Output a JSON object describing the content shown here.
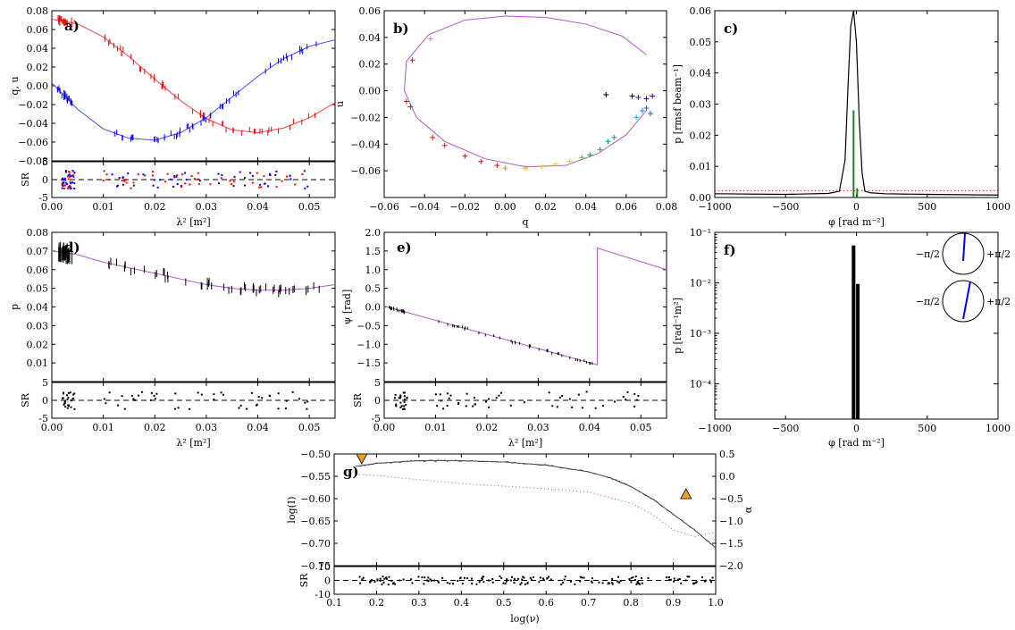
{
  "chart_data": [
    {
      "id": "a",
      "type": "line",
      "panel_label": "a)",
      "ylabel": "q, u",
      "xlim": [
        0,
        0.055
      ],
      "ylim": [
        -0.08,
        0.08
      ],
      "xticks": [
        0.0,
        0.01,
        0.02,
        0.03,
        0.04,
        0.05
      ],
      "xtick_labels": [
        "0.00",
        "0.01",
        "0.02",
        "0.03",
        "0.04",
        "0.05"
      ],
      "yticks": [
        -0.08,
        -0.06,
        -0.04,
        -0.02,
        0.0,
        0.02,
        0.04,
        0.06,
        0.08
      ],
      "ytick_labels": [
        "−0.08",
        "−0.06",
        "−0.04",
        "−0.02",
        "0.00",
        "0.02",
        "0.04",
        "0.06",
        "0.08"
      ],
      "series": [
        {
          "name": "q model",
          "color": "#ff4040",
          "x": [
            0,
            0.005,
            0.01,
            0.015,
            0.02,
            0.025,
            0.03,
            0.035,
            0.04,
            0.045,
            0.05,
            0.055
          ],
          "y": [
            0.071,
            0.066,
            0.052,
            0.031,
            0.007,
            -0.016,
            -0.035,
            -0.047,
            -0.05,
            -0.045,
            -0.034,
            -0.018
          ]
        },
        {
          "name": "u model",
          "color": "#4b4bff",
          "x": [
            0,
            0.005,
            0.01,
            0.015,
            0.02,
            0.025,
            0.03,
            0.035,
            0.04,
            0.045,
            0.05,
            0.055
          ],
          "y": [
            0.003,
            -0.025,
            -0.046,
            -0.056,
            -0.058,
            -0.05,
            -0.034,
            -0.012,
            0.01,
            0.029,
            0.042,
            0.049
          ]
        }
      ],
      "residual": {
        "ylabel": "SR",
        "ylim": [
          -5,
          5
        ],
        "yticks": [
          -5,
          0,
          5
        ],
        "xlabel": "λ² [m²]"
      }
    },
    {
      "id": "b",
      "type": "scatter",
      "panel_label": "b)",
      "xlabel": "q",
      "ylabel": "u",
      "xlim": [
        -0.06,
        0.08
      ],
      "ylim": [
        -0.08,
        0.06
      ],
      "xticks": [
        -0.06,
        -0.04,
        -0.02,
        0.0,
        0.02,
        0.04,
        0.06,
        0.08
      ],
      "xtick_labels": [
        "−0.06",
        "−0.04",
        "−0.02",
        "0.00",
        "0.02",
        "0.04",
        "0.06",
        "0.08"
      ],
      "yticks": [
        -0.06,
        -0.04,
        -0.02,
        0.0,
        0.02,
        0.04,
        0.06
      ],
      "ytick_labels": [
        "−0.06",
        "−0.04",
        "−0.02",
        "0.00",
        "0.02",
        "0.04",
        "0.06"
      ],
      "model_color": "#b05ac0",
      "model": {
        "q": [
          0.07,
          0.058,
          0.04,
          0.02,
          0.0,
          -0.02,
          -0.038,
          -0.049,
          -0.05,
          -0.044,
          -0.03,
          -0.01,
          0.01,
          0.03,
          0.046,
          0.06,
          0.07
        ],
        "u": [
          0.027,
          0.041,
          0.05,
          0.055,
          0.056,
          0.053,
          0.042,
          0.022,
          0.0,
          -0.02,
          -0.038,
          -0.051,
          -0.057,
          -0.056,
          -0.047,
          -0.033,
          -0.015
        ]
      },
      "points": [
        {
          "q": -0.037,
          "u": 0.039,
          "color": "#c080c0"
        },
        {
          "q": -0.046,
          "u": 0.023,
          "color": "#c02020"
        },
        {
          "q": -0.049,
          "u": -0.008,
          "color": "#c02020"
        },
        {
          "q": -0.047,
          "u": -0.012,
          "color": "#c02020"
        },
        {
          "q": -0.036,
          "u": -0.035,
          "color": "#c02020"
        },
        {
          "q": -0.03,
          "u": -0.041,
          "color": "#c02020"
        },
        {
          "q": -0.02,
          "u": -0.049,
          "color": "#c02020"
        },
        {
          "q": -0.012,
          "u": -0.053,
          "color": "#c02020"
        },
        {
          "q": -0.004,
          "u": -0.056,
          "color": "#c02020"
        },
        {
          "q": 0.0,
          "u": -0.058,
          "color": "#ff8000"
        },
        {
          "q": 0.01,
          "u": -0.058,
          "color": "#ffa000"
        },
        {
          "q": 0.018,
          "u": -0.057,
          "color": "#ffd000"
        },
        {
          "q": 0.025,
          "u": -0.055,
          "color": "#e0e000"
        },
        {
          "q": 0.032,
          "u": -0.053,
          "color": "#b0e000"
        },
        {
          "q": 0.038,
          "u": -0.05,
          "color": "#40c040"
        },
        {
          "q": 0.042,
          "u": -0.048,
          "color": "#20a040"
        },
        {
          "q": 0.047,
          "u": -0.044,
          "color": "#20a060"
        },
        {
          "q": 0.051,
          "u": -0.038,
          "color": "#00a080"
        },
        {
          "q": 0.054,
          "u": -0.035,
          "color": "#00a0a0"
        },
        {
          "q": 0.065,
          "u": -0.02,
          "color": "#00c0c0"
        },
        {
          "q": 0.068,
          "u": -0.015,
          "color": "#0090d0"
        },
        {
          "q": 0.07,
          "u": -0.013,
          "color": "#2060c0"
        },
        {
          "q": 0.072,
          "u": -0.017,
          "color": "#2060c0"
        },
        {
          "q": 0.066,
          "u": -0.005,
          "color": "#202080"
        },
        {
          "q": 0.07,
          "u": -0.006,
          "color": "#400080"
        },
        {
          "q": 0.073,
          "u": -0.004,
          "color": "#600080"
        },
        {
          "q": 0.05,
          "u": -0.003,
          "color": "#000000"
        },
        {
          "q": 0.063,
          "u": -0.004,
          "color": "#000000"
        }
      ]
    },
    {
      "id": "c",
      "type": "line",
      "panel_label": "c)",
      "xlabel": "φ [rad m⁻²]",
      "ylabel": "p [rmsf beam⁻¹]",
      "xlim": [
        -1000,
        1000
      ],
      "ylim": [
        0,
        0.06
      ],
      "xticks": [
        -1000,
        -500,
        0,
        500,
        1000
      ],
      "xtick_labels": [
        "−1000",
        "−500",
        "0",
        "500",
        "1000"
      ],
      "yticks": [
        0.0,
        0.01,
        0.02,
        0.03,
        0.04,
        0.05,
        0.06
      ],
      "ytick_labels": [
        "0.00",
        "0.01",
        "0.02",
        "0.03",
        "0.04",
        "0.05",
        "0.06"
      ],
      "series": [
        {
          "name": "faraday spectrum",
          "color": "#000000",
          "x": [
            -1000,
            -500,
            -200,
            -120,
            -80,
            -60,
            -40,
            -20,
            0,
            20,
            40,
            60,
            100,
            200,
            500,
            1000
          ],
          "y": [
            0.0012,
            0.001,
            0.0013,
            0.002,
            0.012,
            0.035,
            0.055,
            0.06,
            0.05,
            0.025,
            0.008,
            0.002,
            0.0015,
            0.0012,
            0.001,
            0.0008
          ]
        },
        {
          "name": "clean component 1",
          "color": "#208020",
          "x": [
            -20,
            -20
          ],
          "y": [
            0,
            0.028
          ]
        },
        {
          "name": "clean component 2",
          "color": "#208020",
          "x": [
            5,
            5
          ],
          "y": [
            0,
            0.003
          ]
        }
      ],
      "threshold": {
        "value": 0.0022,
        "color": "#ff0000"
      }
    },
    {
      "id": "d",
      "type": "line",
      "panel_label": "d)",
      "ylabel": "p",
      "xlim": [
        0,
        0.055
      ],
      "ylim": [
        0.0,
        0.08
      ],
      "xticks": [
        0.0,
        0.01,
        0.02,
        0.03,
        0.04,
        0.05
      ],
      "xtick_labels": [
        "0.00",
        "0.01",
        "0.02",
        "0.03",
        "0.04",
        "0.05"
      ],
      "yticks": [
        0.01,
        0.02,
        0.03,
        0.04,
        0.05,
        0.06,
        0.07,
        0.08
      ],
      "ytick_labels": [
        "0.01",
        "0.02",
        "0.03",
        "0.04",
        "0.05",
        "0.06",
        "0.07",
        "0.08"
      ],
      "series": [
        {
          "name": "p model",
          "color": "#b05ac0",
          "x": [
            0,
            0.005,
            0.01,
            0.015,
            0.02,
            0.025,
            0.03,
            0.035,
            0.04,
            0.045,
            0.05,
            0.055
          ],
          "y": [
            0.07,
            0.068,
            0.064,
            0.061,
            0.058,
            0.055,
            0.052,
            0.05,
            0.049,
            0.049,
            0.05,
            0.052
          ]
        }
      ],
      "residual": {
        "ylabel": "SR",
        "ylim": [
          -5,
          5
        ],
        "yticks": [
          -5,
          0,
          5
        ],
        "xlabel": "λ² [m²]"
      }
    },
    {
      "id": "e",
      "type": "line",
      "panel_label": "e)",
      "ylabel": "ψ [rad]",
      "xlim": [
        0,
        0.055
      ],
      "ylim": [
        -2.0,
        2.0
      ],
      "xticks": [
        0.0,
        0.01,
        0.02,
        0.03,
        0.04,
        0.05
      ],
      "xtick_labels": [
        "0.00",
        "0.01",
        "0.02",
        "0.03",
        "0.04",
        "0.05"
      ],
      "yticks": [
        -1.5,
        -1.0,
        -0.5,
        0.0,
        0.5,
        1.0,
        1.5,
        2.0
      ],
      "ytick_labels": [
        "−1.5",
        "−1.0",
        "−0.5",
        "0.0",
        "0.5",
        "1.0",
        "1.5",
        "2.0"
      ],
      "series": [
        {
          "name": "ψ model",
          "color": "#b05ac0",
          "x": [
            0,
            0.0415,
            0.0415,
            0.055
          ],
          "y": [
            0.02,
            -1.55,
            1.58,
            1.0
          ]
        }
      ],
      "residual": {
        "ylabel": "SR",
        "ylim": [
          -5,
          5
        ],
        "yticks": [
          -5,
          0,
          5
        ],
        "xlabel": "λ² [m²]"
      }
    },
    {
      "id": "f",
      "type": "bar",
      "panel_label": "f)",
      "xlabel": "φ [rad m⁻²]",
      "ylabel": "p [rad⁻¹m²]",
      "xlim": [
        -1000,
        1000
      ],
      "ylim_log": [
        -4.7,
        -1
      ],
      "xticks": [
        -1000,
        -500,
        0,
        500,
        1000
      ],
      "xtick_labels": [
        "−1000",
        "−500",
        "0",
        "500",
        "1000"
      ],
      "ytick_labels": [
        "10⁻¹",
        "10⁻²",
        "10⁻³",
        "10⁻⁴"
      ],
      "bars": [
        {
          "phi": -20,
          "value": 0.055
        },
        {
          "phi": 10,
          "value": 0.0095
        }
      ],
      "dials": [
        {
          "angle_deg": 5,
          "label_left": "−π/2",
          "label_right": "+π/2"
        },
        {
          "angle_deg": 20,
          "label_left": "−π/2",
          "label_right": "+π/2"
        }
      ]
    },
    {
      "id": "g",
      "type": "line",
      "panel_label": "g)",
      "xlabel": "log(ν)",
      "ylabel": "log(I)",
      "ylabel_right": "α",
      "xlim": [
        0.1,
        1.0
      ],
      "ylim": [
        -0.75,
        -0.5
      ],
      "ylim_right": [
        -2.0,
        0.5
      ],
      "xticks": [
        0.1,
        0.2,
        0.3,
        0.4,
        0.5,
        0.6,
        0.7,
        0.8,
        0.9,
        1.0
      ],
      "xtick_labels": [
        "0.1",
        "0.2",
        "0.3",
        "0.4",
        "0.5",
        "0.6",
        "0.7",
        "0.8",
        "0.9",
        "1.0"
      ],
      "yticks": [
        -0.7,
        -0.65,
        -0.6,
        -0.55,
        -0.5
      ],
      "ytick_labels": [
        "−0.70",
        "−0.65",
        "−0.60",
        "−0.55",
        "−0.50"
      ],
      "yticks_right": [
        -2.0,
        -1.5,
        -1.0,
        -0.5,
        0.0,
        0.5
      ],
      "ytick_labels_right": [
        "−2.0",
        "−1.5",
        "−1.0",
        "−0.5",
        "0.0",
        "0.5"
      ],
      "bottom_clip_label": "−0.75",
      "series": [
        {
          "name": "log(I) model",
          "color": "#555555",
          "x": [
            0.15,
            0.2,
            0.3,
            0.4,
            0.5,
            0.6,
            0.7,
            0.75,
            0.8,
            0.85,
            0.9,
            0.95,
            1.0
          ],
          "y": [
            -0.528,
            -0.521,
            -0.515,
            -0.515,
            -0.518,
            -0.525,
            -0.54,
            -0.553,
            -0.573,
            -0.6,
            -0.635,
            -0.67,
            -0.71
          ]
        },
        {
          "name": "α model",
          "color": "#ff4040",
          "axis": "right",
          "x": [
            0.15,
            0.2,
            0.3,
            0.4,
            0.5,
            0.6,
            0.7,
            0.8,
            0.85,
            0.9,
            0.95,
            1.0
          ],
          "y": [
            0.05,
            0.02,
            -0.08,
            -0.16,
            -0.22,
            -0.28,
            -0.35,
            -0.6,
            -0.85,
            -1.2,
            -1.35,
            -1.25
          ]
        }
      ],
      "markers": [
        {
          "x": 0.165,
          "y": -0.5,
          "shape": "triangle-down",
          "color": "#f0a020"
        },
        {
          "x": 0.93,
          "y": -0.4,
          "shape": "triangle-up",
          "color": "#f0a020"
        }
      ],
      "residual": {
        "ylabel": "SR",
        "ylim": [
          -10,
          10
        ],
        "yticks": [
          -10,
          0,
          10
        ]
      }
    }
  ]
}
